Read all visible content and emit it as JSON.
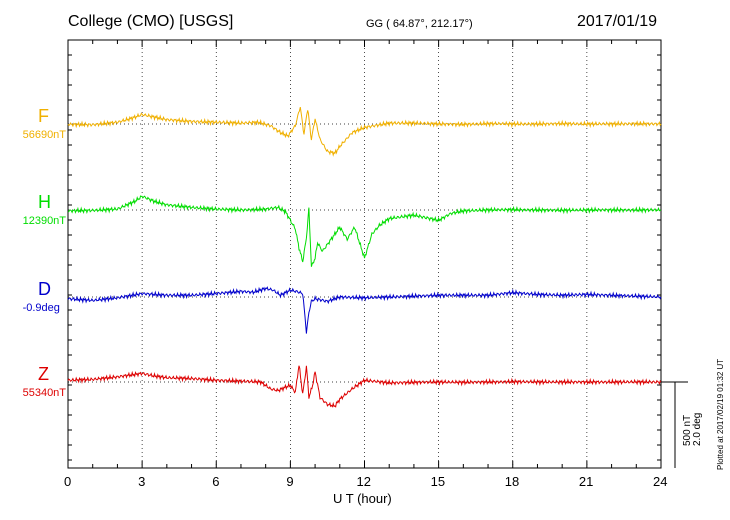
{
  "header": {
    "station": "College (CMO)  [USGS]",
    "coords": "GG ( 64.87°, 212.17°)",
    "date": "2017/01/19"
  },
  "scale_label": {
    "line1": "500 nT",
    "line2": "2.0 deg"
  },
  "footer_note": "Plotted at 2017/02/19 01:32 UT",
  "chart_data": {
    "type": "line",
    "xlabel": "U T (hour)",
    "xlim": [
      0,
      24
    ],
    "xticks": [
      "0",
      "3",
      "6",
      "9",
      "12",
      "15",
      "18",
      "21",
      "24"
    ],
    "grid": true,
    "series": [
      {
        "name": "F",
        "baseline_label": "56690nT",
        "color": "#f0b000",
        "baseline": 56690,
        "unit": "nT",
        "points": [
          [
            0,
            56688
          ],
          [
            1,
            56686
          ],
          [
            2,
            56700
          ],
          [
            2.5,
            56720
          ],
          [
            3,
            56745
          ],
          [
            3.5,
            56730
          ],
          [
            4,
            56715
          ],
          [
            5,
            56705
          ],
          [
            6,
            56700
          ],
          [
            7,
            56695
          ],
          [
            7.7,
            56700
          ],
          [
            8.2,
            56680
          ],
          [
            8.6,
            56640
          ],
          [
            8.9,
            56620
          ],
          [
            9.2,
            56680
          ],
          [
            9.4,
            56790
          ],
          [
            9.55,
            56630
          ],
          [
            9.7,
            56780
          ],
          [
            9.85,
            56600
          ],
          [
            10,
            56720
          ],
          [
            10.2,
            56600
          ],
          [
            10.5,
            56530
          ],
          [
            10.8,
            56520
          ],
          [
            11,
            56560
          ],
          [
            11.5,
            56640
          ],
          [
            12,
            56670
          ],
          [
            13,
            56695
          ],
          [
            14,
            56695
          ],
          [
            15,
            56690
          ],
          [
            16,
            56688
          ],
          [
            17,
            56692
          ],
          [
            18,
            56690
          ],
          [
            19,
            56690
          ],
          [
            20,
            56692
          ],
          [
            21,
            56690
          ],
          [
            22,
            56690
          ],
          [
            23,
            56692
          ],
          [
            24,
            56690
          ]
        ]
      },
      {
        "name": "H",
        "baseline_label": "12390nT",
        "color": "#00dd00",
        "baseline": 12390,
        "unit": "nT",
        "points": [
          [
            0,
            12385
          ],
          [
            1,
            12388
          ],
          [
            2,
            12395
          ],
          [
            2.7,
            12440
          ],
          [
            3,
            12470
          ],
          [
            3.5,
            12440
          ],
          [
            4,
            12420
          ],
          [
            5,
            12405
          ],
          [
            6,
            12395
          ],
          [
            7,
            12390
          ],
          [
            8,
            12395
          ],
          [
            8.5,
            12405
          ],
          [
            8.8,
            12380
          ],
          [
            9,
            12330
          ],
          [
            9.2,
            12280
          ],
          [
            9.35,
            12170
          ],
          [
            9.5,
            12090
          ],
          [
            9.65,
            12230
          ],
          [
            9.75,
            12400
          ],
          [
            9.85,
            12060
          ],
          [
            10,
            12110
          ],
          [
            10.1,
            12200
          ],
          [
            10.3,
            12150
          ],
          [
            10.6,
            12210
          ],
          [
            11,
            12290
          ],
          [
            11.3,
            12220
          ],
          [
            11.6,
            12290
          ],
          [
            12,
            12110
          ],
          [
            12.3,
            12250
          ],
          [
            12.6,
            12300
          ],
          [
            13,
            12340
          ],
          [
            14,
            12360
          ],
          [
            15,
            12330
          ],
          [
            15.5,
            12370
          ],
          [
            16,
            12385
          ],
          [
            17,
            12390
          ],
          [
            18,
            12392
          ],
          [
            19,
            12390
          ],
          [
            20,
            12388
          ],
          [
            21,
            12390
          ],
          [
            22,
            12390
          ],
          [
            23,
            12390
          ],
          [
            24,
            12390
          ]
        ]
      },
      {
        "name": "D",
        "baseline_label": "-0.9deg",
        "color": "#0000cc",
        "baseline": -0.9,
        "unit": "deg",
        "points": [
          [
            0,
            -0.94
          ],
          [
            1,
            -0.98
          ],
          [
            2,
            -0.92
          ],
          [
            3,
            -0.82
          ],
          [
            4,
            -0.86
          ],
          [
            5,
            -0.86
          ],
          [
            6,
            -0.82
          ],
          [
            7,
            -0.77
          ],
          [
            7.5,
            -0.79
          ],
          [
            8,
            -0.7
          ],
          [
            8.3,
            -0.74
          ],
          [
            8.6,
            -0.86
          ],
          [
            9,
            -0.74
          ],
          [
            9.3,
            -0.78
          ],
          [
            9.5,
            -0.82
          ],
          [
            9.65,
            -1.72
          ],
          [
            9.75,
            -1.26
          ],
          [
            9.85,
            -1.0
          ],
          [
            10,
            -0.94
          ],
          [
            10.5,
            -1.0
          ],
          [
            11,
            -0.9
          ],
          [
            12,
            -0.92
          ],
          [
            13,
            -0.9
          ],
          [
            14,
            -0.88
          ],
          [
            15,
            -0.86
          ],
          [
            16,
            -0.86
          ],
          [
            17,
            -0.86
          ],
          [
            18,
            -0.8
          ],
          [
            19,
            -0.84
          ],
          [
            20,
            -0.86
          ],
          [
            21,
            -0.84
          ],
          [
            22,
            -0.86
          ],
          [
            23,
            -0.88
          ],
          [
            24,
            -0.9
          ]
        ]
      },
      {
        "name": "Z",
        "baseline_label": "55340nT",
        "color": "#dd0000",
        "baseline": 55340,
        "unit": "nT",
        "points": [
          [
            0,
            55350
          ],
          [
            1,
            55355
          ],
          [
            2,
            55370
          ],
          [
            3,
            55390
          ],
          [
            3.5,
            55375
          ],
          [
            4,
            55365
          ],
          [
            5,
            55360
          ],
          [
            6,
            55350
          ],
          [
            7,
            55345
          ],
          [
            7.8,
            55340
          ],
          [
            8.2,
            55300
          ],
          [
            8.5,
            55290
          ],
          [
            8.8,
            55310
          ],
          [
            9,
            55320
          ],
          [
            9.2,
            55280
          ],
          [
            9.35,
            55440
          ],
          [
            9.5,
            55270
          ],
          [
            9.65,
            55430
          ],
          [
            9.75,
            55250
          ],
          [
            9.9,
            55320
          ],
          [
            10,
            55400
          ],
          [
            10.2,
            55250
          ],
          [
            10.5,
            55210
          ],
          [
            10.8,
            55200
          ],
          [
            11,
            55240
          ],
          [
            11.5,
            55300
          ],
          [
            12,
            55350
          ],
          [
            13,
            55335
          ],
          [
            14,
            55338
          ],
          [
            15,
            55340
          ],
          [
            16,
            55338
          ],
          [
            17,
            55340
          ],
          [
            18,
            55342
          ],
          [
            19,
            55340
          ],
          [
            20,
            55340
          ],
          [
            21,
            55340
          ],
          [
            22,
            55340
          ],
          [
            23,
            55340
          ],
          [
            24,
            55340
          ]
        ]
      }
    ]
  }
}
